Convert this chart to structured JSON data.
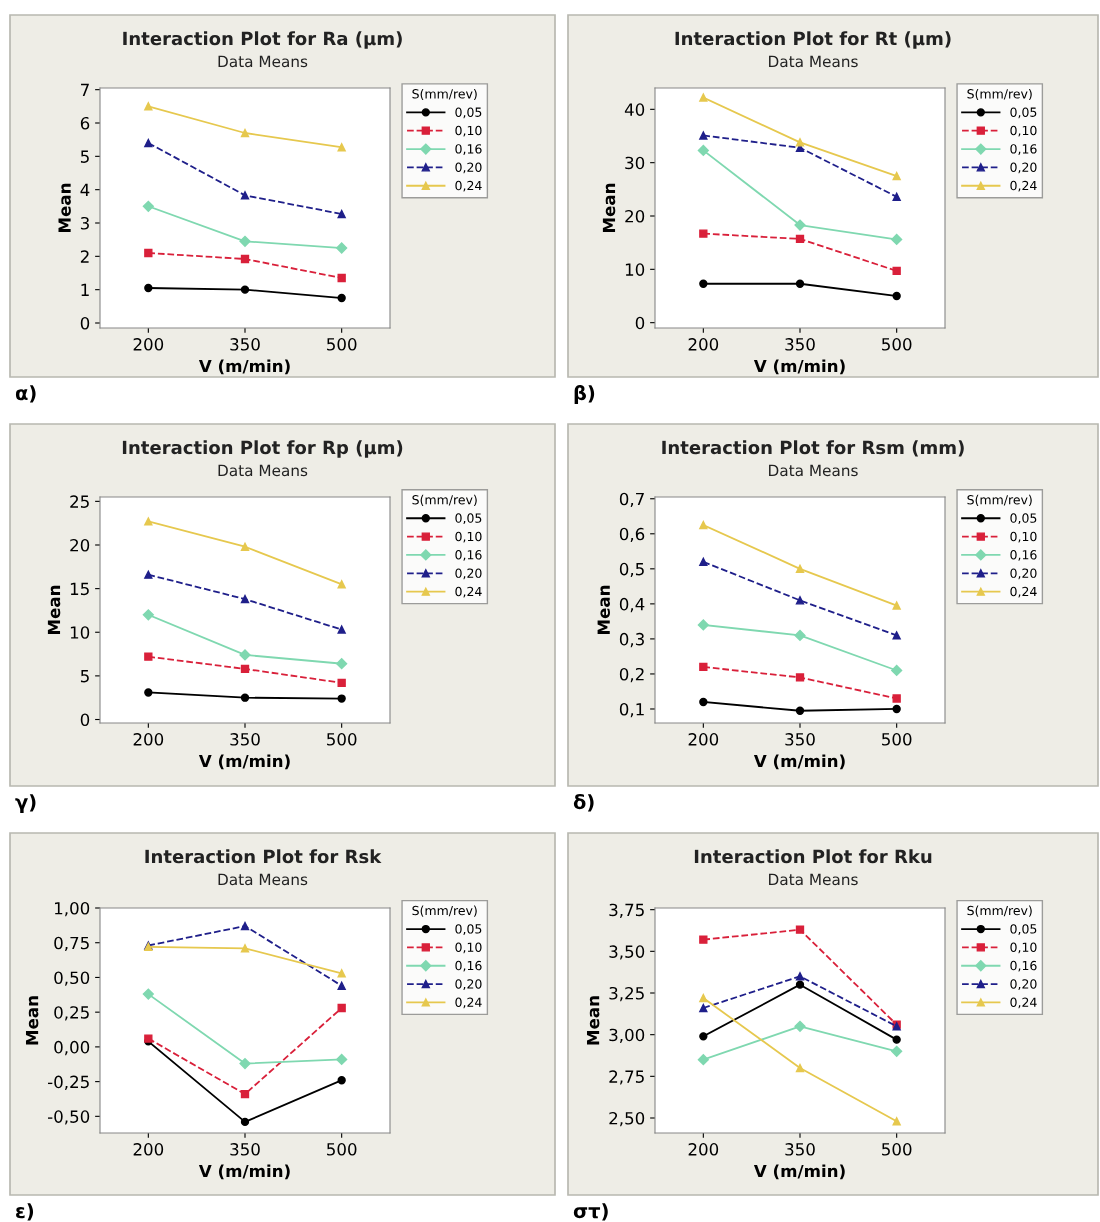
{
  "chart_data": [
    {
      "type": "line",
      "title": "Interaction Plot for Ra (µm)",
      "subtitle": "Data Means",
      "xlabel": "V (m/min)",
      "ylabel": "Mean",
      "legend_title": "S(mm/rev)",
      "legend": "right",
      "annotations": [
        "α)"
      ],
      "categories": [
        "200",
        "350",
        "500"
      ],
      "ylim": [
        -0.15,
        7.05
      ],
      "yticks": [
        0,
        1,
        2,
        3,
        4,
        5,
        6,
        7
      ],
      "grid": false,
      "series": [
        {
          "name": "0,05",
          "color": "#000000",
          "marker": "circle",
          "line_style": "solid",
          "values": [
            1.05,
            1.0,
            0.75
          ]
        },
        {
          "name": "0,10",
          "color": "#d9203a",
          "marker": "square",
          "line_style": "dashed",
          "values": [
            2.1,
            1.92,
            1.35
          ]
        },
        {
          "name": "0,16",
          "color": "#7fd8b0",
          "marker": "diamond",
          "line_style": "solid",
          "values": [
            3.5,
            2.45,
            2.25
          ]
        },
        {
          "name": "0,20",
          "color": "#1f1f8a",
          "marker": "triangle",
          "line_style": "dashed",
          "values": [
            5.4,
            3.83,
            3.27
          ]
        },
        {
          "name": "0,24",
          "color": "#e6c84e",
          "marker": "triangle",
          "line_style": "solid",
          "values": [
            6.5,
            5.7,
            5.27
          ]
        }
      ]
    },
    {
      "type": "line",
      "title": "Interaction Plot for Rt (µm)",
      "subtitle": "Data Means",
      "xlabel": "V (m/min)",
      "ylabel": "Mean",
      "legend_title": "S(mm/rev)",
      "legend": "right",
      "annotations": [
        "β)"
      ],
      "categories": [
        "200",
        "350",
        "500"
      ],
      "ylim": [
        -1,
        44
      ],
      "yticks": [
        0,
        10,
        20,
        30,
        40
      ],
      "grid": false,
      "series": [
        {
          "name": "0,05",
          "color": "#000000",
          "marker": "circle",
          "line_style": "solid",
          "values": [
            7.3,
            7.3,
            5.0
          ]
        },
        {
          "name": "0,10",
          "color": "#d9203a",
          "marker": "square",
          "line_style": "dashed",
          "values": [
            16.7,
            15.7,
            9.7
          ]
        },
        {
          "name": "0,16",
          "color": "#7fd8b0",
          "marker": "diamond",
          "line_style": "solid",
          "values": [
            32.3,
            18.3,
            15.6
          ]
        },
        {
          "name": "0,20",
          "color": "#1f1f8a",
          "marker": "triangle",
          "line_style": "dashed",
          "values": [
            35.1,
            32.8,
            23.6
          ]
        },
        {
          "name": "0,24",
          "color": "#e6c84e",
          "marker": "triangle",
          "line_style": "solid",
          "values": [
            42.2,
            33.8,
            27.5
          ]
        }
      ]
    },
    {
      "type": "line",
      "title": "Interaction Plot for Rp (µm)",
      "subtitle": "Data Means",
      "xlabel": "V (m/min)",
      "ylabel": "Mean",
      "legend_title": "S(mm/rev)",
      "legend": "right",
      "annotations": [
        "γ)"
      ],
      "categories": [
        "200",
        "350",
        "500"
      ],
      "ylim": [
        -0.4,
        25.5
      ],
      "yticks": [
        0,
        5,
        10,
        15,
        20,
        25
      ],
      "grid": false,
      "series": [
        {
          "name": "0,05",
          "color": "#000000",
          "marker": "circle",
          "line_style": "solid",
          "values": [
            3.1,
            2.5,
            2.4
          ]
        },
        {
          "name": "0,10",
          "color": "#d9203a",
          "marker": "square",
          "line_style": "dashed",
          "values": [
            7.2,
            5.8,
            4.2
          ]
        },
        {
          "name": "0,16",
          "color": "#7fd8b0",
          "marker": "diamond",
          "line_style": "solid",
          "values": [
            12.0,
            7.4,
            6.4
          ]
        },
        {
          "name": "0,20",
          "color": "#1f1f8a",
          "marker": "triangle",
          "line_style": "dashed",
          "values": [
            16.6,
            13.8,
            10.3
          ]
        },
        {
          "name": "0,24",
          "color": "#e6c84e",
          "marker": "triangle",
          "line_style": "solid",
          "values": [
            22.7,
            19.8,
            15.5
          ]
        }
      ]
    },
    {
      "type": "line",
      "title": "Interaction Plot for Rsm (mm)",
      "subtitle": "Data Means",
      "xlabel": "V (m/min)",
      "ylabel": "Mean",
      "legend_title": "S(mm/rev)",
      "legend": "right",
      "annotations": [
        "δ)"
      ],
      "categories": [
        "200",
        "350",
        "500"
      ],
      "ylim": [
        0.06,
        0.705
      ],
      "yticks": [
        {
          "value": 0.1,
          "label": "0,1"
        },
        {
          "value": 0.2,
          "label": "0,2"
        },
        {
          "value": 0.3,
          "label": "0,3"
        },
        {
          "value": 0.4,
          "label": "0,4"
        },
        {
          "value": 0.5,
          "label": "0,5"
        },
        {
          "value": 0.6,
          "label": "0,6"
        },
        {
          "value": 0.7,
          "label": "0,7"
        }
      ],
      "grid": false,
      "series": [
        {
          "name": "0,05",
          "color": "#000000",
          "marker": "circle",
          "line_style": "solid",
          "values": [
            0.12,
            0.095,
            0.1
          ]
        },
        {
          "name": "0,10",
          "color": "#d9203a",
          "marker": "square",
          "line_style": "dashed",
          "values": [
            0.22,
            0.19,
            0.13
          ]
        },
        {
          "name": "0,16",
          "color": "#7fd8b0",
          "marker": "diamond",
          "line_style": "solid",
          "values": [
            0.34,
            0.31,
            0.21
          ]
        },
        {
          "name": "0,20",
          "color": "#1f1f8a",
          "marker": "triangle",
          "line_style": "dashed",
          "values": [
            0.52,
            0.41,
            0.31
          ]
        },
        {
          "name": "0,24",
          "color": "#e6c84e",
          "marker": "triangle",
          "line_style": "solid",
          "values": [
            0.625,
            0.5,
            0.395
          ]
        }
      ]
    },
    {
      "type": "line",
      "title": "Interaction Plot for Rsk",
      "subtitle": "Data Means",
      "xlabel": "V (m/min)",
      "ylabel": "Mean",
      "legend_title": "S(mm/rev)",
      "legend": "right",
      "annotations": [
        "ε)"
      ],
      "categories": [
        "200",
        "350",
        "500"
      ],
      "ylim": [
        -0.62,
        1.0
      ],
      "yticks": [
        {
          "value": -0.5,
          "label": "-0,50"
        },
        {
          "value": -0.25,
          "label": "-0,25"
        },
        {
          "value": 0,
          "label": "0,00"
        },
        {
          "value": 0.25,
          "label": "0,25"
        },
        {
          "value": 0.5,
          "label": "0,50"
        },
        {
          "value": 0.75,
          "label": "0,75"
        },
        {
          "value": 1.0,
          "label": "1,00"
        }
      ],
      "grid": false,
      "series": [
        {
          "name": "0,05",
          "color": "#000000",
          "marker": "circle",
          "line_style": "solid",
          "values": [
            0.04,
            -0.54,
            -0.24
          ]
        },
        {
          "name": "0,10",
          "color": "#d9203a",
          "marker": "square",
          "line_style": "dashed",
          "values": [
            0.06,
            -0.34,
            0.28
          ]
        },
        {
          "name": "0,16",
          "color": "#7fd8b0",
          "marker": "diamond",
          "line_style": "solid",
          "values": [
            0.38,
            -0.12,
            -0.09
          ]
        },
        {
          "name": "0,20",
          "color": "#1f1f8a",
          "marker": "triangle",
          "line_style": "dashed",
          "values": [
            0.73,
            0.87,
            0.44
          ]
        },
        {
          "name": "0,24",
          "color": "#e6c84e",
          "marker": "triangle",
          "line_style": "solid",
          "values": [
            0.72,
            0.71,
            0.53
          ]
        }
      ]
    },
    {
      "type": "line",
      "title": "Interaction Plot for Rku",
      "subtitle": "Data Means",
      "xlabel": "V (m/min)",
      "ylabel": "Mean",
      "legend_title": "S(mm/rev)",
      "legend": "right",
      "annotations": [
        "στ)"
      ],
      "categories": [
        "200",
        "350",
        "500"
      ],
      "ylim": [
        2.41,
        3.76
      ],
      "yticks": [
        {
          "value": 2.5,
          "label": "2,50"
        },
        {
          "value": 2.75,
          "label": "2,75"
        },
        {
          "value": 3.0,
          "label": "3,00"
        },
        {
          "value": 3.25,
          "label": "3,25"
        },
        {
          "value": 3.5,
          "label": "3,50"
        },
        {
          "value": 3.75,
          "label": "3,75"
        }
      ],
      "grid": false,
      "series": [
        {
          "name": "0,05",
          "color": "#000000",
          "marker": "circle",
          "line_style": "solid",
          "values": [
            2.99,
            3.3,
            2.97
          ]
        },
        {
          "name": "0,10",
          "color": "#d9203a",
          "marker": "square",
          "line_style": "dashed",
          "values": [
            3.57,
            3.63,
            3.06
          ]
        },
        {
          "name": "0,16",
          "color": "#7fd8b0",
          "marker": "diamond",
          "line_style": "solid",
          "values": [
            2.85,
            3.05,
            2.9
          ]
        },
        {
          "name": "0,20",
          "color": "#1f1f8a",
          "marker": "triangle",
          "line_style": "dashed",
          "values": [
            3.16,
            3.35,
            3.05
          ]
        },
        {
          "name": "0,24",
          "color": "#e6c84e",
          "marker": "triangle",
          "line_style": "solid",
          "values": [
            3.22,
            2.8,
            2.48
          ]
        }
      ]
    }
  ]
}
